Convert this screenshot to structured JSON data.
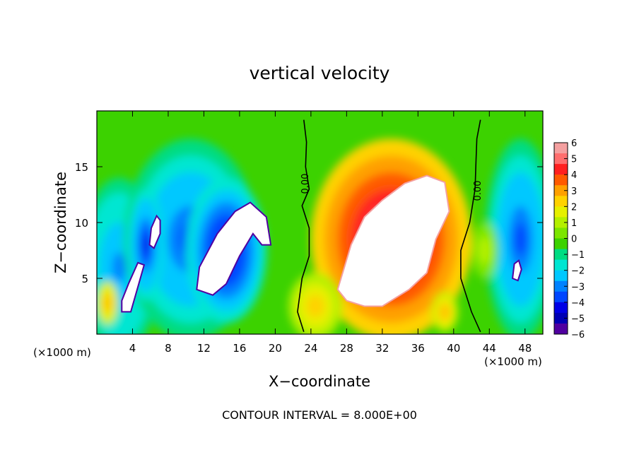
{
  "chart_data": {
    "type": "heatmap",
    "title": "vertical velocity",
    "xlabel": "X−coordinate",
    "ylabel": "Z−coordinate",
    "x_unit_label": "(×1000 m)",
    "x_unit_label_right": "(×1000 m)",
    "footer": "CONTOUR INTERVAL = 8.000E+00",
    "xlim": [
      0,
      50
    ],
    "ylim": [
      0,
      20
    ],
    "x_ticks": [
      4,
      8,
      12,
      16,
      20,
      24,
      28,
      32,
      36,
      40,
      44,
      48
    ],
    "y_ticks": [
      5,
      10,
      15
    ],
    "contour_labels": [
      "0.00",
      "0.00"
    ],
    "colorbar": {
      "min": -6,
      "max": 6,
      "tick_values": [
        6,
        5,
        4,
        3,
        2,
        1,
        0,
        -1,
        -2,
        -3,
        -4,
        -5,
        -6
      ],
      "tick_labels": [
        "6",
        "5",
        "4",
        "3",
        "2",
        "1",
        "0",
        "−1",
        "−2",
        "−3",
        "−4",
        "−5",
        "−6"
      ],
      "colors": [
        "#f4a0a0",
        "#ff6e6e",
        "#ff2020",
        "#ff5a00",
        "#ffa000",
        "#ffd200",
        "#e6f000",
        "#b4f000",
        "#7ce600",
        "#3cd200",
        "#00dc82",
        "#00e6d2",
        "#00c8ff",
        "#0082ff",
        "#0046ff",
        "#0000e6",
        "#0000b4",
        "#5000a0"
      ]
    },
    "features": [
      {
        "kind": "downdraft",
        "x": 2.5,
        "z": 6.0,
        "rx": 4.5,
        "rz": 8.0,
        "w": -3.0
      },
      {
        "kind": "downdraft",
        "x": 10.5,
        "z": 8.5,
        "rx": 7.5,
        "rz": 9.0,
        "w": -3.5
      },
      {
        "kind": "downdraft",
        "x": 14.5,
        "z": 7.5,
        "rx": 4.5,
        "rz": 6.5,
        "w": -4.5
      },
      {
        "kind": "downdraft",
        "x": 47.5,
        "z": 8.5,
        "rx": 4.0,
        "rz": 9.0,
        "w": -3.5
      },
      {
        "kind": "downdraft",
        "x": 5.5,
        "z": 8.0,
        "rx": 2.0,
        "rz": 5.0,
        "w": -4.0
      },
      {
        "kind": "updraft",
        "x": 33.0,
        "z": 8.5,
        "rx": 9.0,
        "rz": 9.0,
        "w": 5.5
      },
      {
        "kind": "updraft",
        "x": 24.5,
        "z": 2.5,
        "rx": 3.0,
        "rz": 3.0,
        "w": 2.5
      },
      {
        "kind": "updraft",
        "x": 1.2,
        "z": 2.8,
        "rx": 1.2,
        "rz": 2.0,
        "w": 3.0
      },
      {
        "kind": "updraft",
        "x": 39.0,
        "z": 2.0,
        "rx": 1.5,
        "rz": 1.8,
        "w": 3.0
      },
      {
        "kind": "updraft",
        "x": 43.5,
        "z": 7.5,
        "rx": 1.5,
        "rz": 2.5,
        "w": 1.0
      }
    ],
    "saturated_regions": [
      {
        "sign": "positive",
        "polygon": [
          [
            27,
            4
          ],
          [
            28.5,
            8
          ],
          [
            30,
            10.5
          ],
          [
            32,
            12
          ],
          [
            34.5,
            13.5
          ],
          [
            37,
            14.2
          ],
          [
            39,
            13.6
          ],
          [
            39.5,
            11
          ],
          [
            38,
            8.5
          ],
          [
            37,
            5.5
          ],
          [
            35,
            4
          ],
          [
            32,
            2.5
          ],
          [
            30,
            2.5
          ],
          [
            28,
            3
          ]
        ]
      },
      {
        "sign": "negative",
        "polygon": [
          [
            11.2,
            4
          ],
          [
            13,
            3.5
          ],
          [
            14.5,
            4.5
          ],
          [
            16,
            7
          ],
          [
            17.5,
            9
          ],
          [
            18.5,
            8
          ],
          [
            19.5,
            8
          ],
          [
            19,
            10.5
          ],
          [
            17.2,
            11.8
          ],
          [
            15.5,
            11
          ],
          [
            13.5,
            9
          ],
          [
            11.5,
            6
          ]
        ]
      },
      {
        "sign": "negative",
        "polygon": [
          [
            2.8,
            2
          ],
          [
            3.8,
            2
          ],
          [
            4.7,
            4.5
          ],
          [
            5.3,
            6.2
          ],
          [
            4.6,
            6.4
          ],
          [
            3.6,
            4.6
          ],
          [
            2.8,
            3
          ]
        ]
      },
      {
        "sign": "negative",
        "polygon": [
          [
            5.9,
            8
          ],
          [
            6.4,
            7.7
          ],
          [
            7.1,
            9
          ],
          [
            7.1,
            10.2
          ],
          [
            6.7,
            10.6
          ],
          [
            6.1,
            9.5
          ]
        ]
      },
      {
        "sign": "negative",
        "polygon": [
          [
            46.6,
            5
          ],
          [
            47.2,
            4.8
          ],
          [
            47.6,
            5.8
          ],
          [
            47.3,
            6.6
          ],
          [
            46.8,
            6.3
          ]
        ]
      }
    ],
    "zero_contours": [
      [
        [
          23.2,
          0.2
        ],
        [
          22.5,
          2
        ],
        [
          23,
          5
        ],
        [
          23.8,
          7
        ],
        [
          23.8,
          9.5
        ],
        [
          23,
          11.5
        ],
        [
          23.8,
          13
        ],
        [
          23.4,
          15
        ],
        [
          23.5,
          17.2
        ],
        [
          23.2,
          19.2
        ]
      ],
      [
        [
          43,
          0.2
        ],
        [
          42,
          2
        ],
        [
          40.8,
          5
        ],
        [
          40.8,
          7.5
        ],
        [
          41.8,
          10
        ],
        [
          42.4,
          13
        ],
        [
          42.5,
          15.5
        ],
        [
          42.6,
          17.5
        ],
        [
          43,
          19.2
        ]
      ]
    ]
  }
}
